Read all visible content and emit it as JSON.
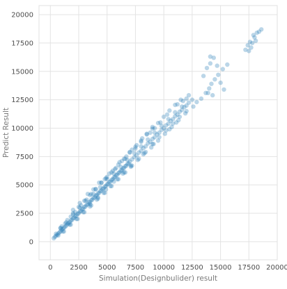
{
  "chart_data": {
    "type": "scatter",
    "title": "",
    "xlabel": "Simulation(Designbulider) result",
    "ylabel": "Predict Result",
    "xlim": [
      -1000,
      20000
    ],
    "ylim": [
      -1600,
      20800
    ],
    "xticks": [
      0,
      2500,
      5000,
      7500,
      10000,
      12500,
      15000,
      17500,
      20000
    ],
    "yticks": [
      0,
      2500,
      5000,
      7500,
      10000,
      12500,
      15000,
      17500,
      20000
    ],
    "xtick_labels": [
      "0",
      "2500",
      "5000",
      "7500",
      "10000",
      "12500",
      "15000",
      "17500",
      "20000"
    ],
    "ytick_labels": [
      "0",
      "2500",
      "5000",
      "7500",
      "10000",
      "12500",
      "15000",
      "17500",
      "20000"
    ],
    "grid": true,
    "marker_color": "#1f77b4",
    "marker_alpha": 0.3,
    "series": [
      {
        "x": [
          300,
          400,
          500,
          600,
          700,
          800,
          900,
          1000,
          1100,
          1200,
          1300,
          1400,
          1500,
          1600,
          1700,
          1800,
          1900,
          2000,
          2100,
          2200,
          2300,
          2400,
          2500,
          2600,
          2700,
          2800,
          2900,
          3000,
          3100,
          3200,
          3300,
          3400,
          3500,
          3600,
          3700,
          3800,
          3900,
          4000,
          4100,
          4200,
          4300,
          4400,
          4500,
          4600,
          4700,
          4800,
          4900,
          5000,
          5100,
          5200,
          5300,
          5400,
          5500,
          5600,
          5700,
          5800,
          5900,
          6000,
          6100,
          6200,
          6300,
          6400,
          6500,
          6600,
          6700,
          6800,
          6900,
          7000,
          7200,
          7400,
          7600,
          7800,
          8000,
          8200,
          8400,
          8600,
          8800,
          9000,
          9200,
          9400,
          9600,
          9800,
          10000,
          10200,
          10400,
          10600,
          10800,
          11000,
          11200,
          11400,
          11600,
          11800,
          12000,
          12200,
          12500,
          1000,
          1500,
          2000,
          2500,
          3000,
          3500,
          4000,
          4500,
          5000,
          5500,
          6000,
          6500,
          7000,
          7500,
          8000,
          8500,
          9000,
          9500,
          10000,
          10500,
          11000,
          11500,
          12000,
          1200,
          1800,
          2400,
          3000,
          3600,
          4200,
          4800,
          5400,
          6000,
          6600,
          7200,
          7800,
          8400,
          9000,
          9600,
          10200,
          10800,
          11400,
          12000,
          900,
          1400,
          2000,
          2600,
          3200,
          3800,
          4400,
          5000,
          5600,
          6200,
          6800,
          7400,
          8000,
          8600,
          9200,
          9800,
          10400,
          11000,
          11600,
          700,
          1100,
          1700,
          2300,
          2900,
          3500,
          4100,
          4700,
          5300,
          5900,
          6500,
          7100,
          7700,
          8300,
          8900,
          9500,
          10100,
          10700,
          11300,
          11900,
          500,
          900,
          1300,
          1800,
          2200,
          2700,
          3100,
          3600,
          4000,
          4500,
          4900,
          5400,
          5800,
          6300,
          6700,
          7200,
          7600,
          8100,
          8500,
          9000,
          2000,
          2600,
          3300,
          3800,
          4300,
          4800,
          5200,
          5700,
          6100,
          6600,
          7000,
          7500,
          8000,
          8800,
          9200,
          9700,
          10300,
          11200,
          11700,
          12200,
          3500,
          4200,
          4900,
          5600,
          6400,
          7100,
          8200,
          9100,
          10500,
          11100,
          12600,
          12900,
          13300,
          13700,
          14000,
          14200,
          14500,
          14800,
          15200,
          15600,
          13500,
          13800,
          14100,
          14400,
          14700,
          15000,
          15300,
          17200,
          17400,
          17600,
          17800,
          18000,
          18200,
          18400,
          18600,
          17500,
          17700,
          17900,
          18100,
          14100,
          13900,
          14300
        ],
        "y": [
          300,
          420,
          520,
          610,
          720,
          820,
          900,
          1050,
          1120,
          1230,
          1310,
          1420,
          1550,
          1620,
          1700,
          1850,
          1900,
          2050,
          2100,
          2250,
          2300,
          2450,
          2500,
          2650,
          2700,
          2850,
          2900,
          3050,
          3100,
          3250,
          3300,
          3450,
          3500,
          3650,
          3700,
          3850,
          3900,
          4050,
          4100,
          4250,
          4300,
          4450,
          4500,
          4650,
          4700,
          4850,
          4900,
          5050,
          5100,
          5250,
          5300,
          5450,
          5500,
          5650,
          5700,
          5850,
          5900,
          6050,
          6100,
          6250,
          6300,
          6450,
          6500,
          6650,
          6700,
          6850,
          6900,
          7050,
          7250,
          7450,
          7600,
          7850,
          8000,
          8250,
          8400,
          8650,
          8800,
          9050,
          9200,
          9450,
          9600,
          9850,
          10000,
          10250,
          10400,
          10650,
          10800,
          11050,
          11200,
          11450,
          11600,
          11850,
          12000,
          12250,
          12500,
          1350,
          1900,
          2500,
          3050,
          3600,
          4100,
          4650,
          5200,
          5700,
          6250,
          6800,
          7300,
          7850,
          8350,
          8900,
          9450,
          9950,
          10450,
          11000,
          11550,
          12050,
          12500,
          12600,
          900,
          1500,
          2000,
          2600,
          3200,
          3800,
          4300,
          4900,
          5500,
          6100,
          6700,
          7300,
          7900,
          8600,
          9200,
          9800,
          10400,
          11000,
          11500,
          1200,
          1700,
          2400,
          3000,
          3700,
          4200,
          4800,
          5500,
          6000,
          6600,
          7200,
          7800,
          8400,
          9000,
          9600,
          10200,
          10800,
          11400,
          11900,
          550,
          900,
          1500,
          2000,
          2600,
          3100,
          3700,
          4300,
          4900,
          5500,
          6100,
          6600,
          7200,
          7800,
          8300,
          8900,
          9500,
          10100,
          10700,
          11300,
          700,
          1200,
          1600,
          2200,
          2600,
          3200,
          3600,
          4200,
          4600,
          5200,
          5600,
          6100,
          6500,
          7100,
          7500,
          8100,
          8500,
          9100,
          9500,
          10100,
          2800,
          3400,
          4200,
          4600,
          5200,
          5500,
          6000,
          6400,
          7000,
          7300,
          7900,
          8200,
          8800,
          9600,
          10000,
          10500,
          11200,
          12100,
          12400,
          12900,
          3300,
          3900,
          4600,
          5300,
          6000,
          6700,
          7700,
          8600,
          9900,
          10500,
          11900,
          12300,
          12600,
          13100,
          13500,
          13900,
          14300,
          14700,
          15200,
          15600,
          14600,
          15300,
          15700,
          16200,
          15500,
          14000,
          13400,
          16900,
          17300,
          17600,
          17500,
          18000,
          18400,
          18500,
          18700,
          16800,
          17100,
          18200,
          17700,
          16300,
          13100,
          12900
        ]
      }
    ]
  }
}
